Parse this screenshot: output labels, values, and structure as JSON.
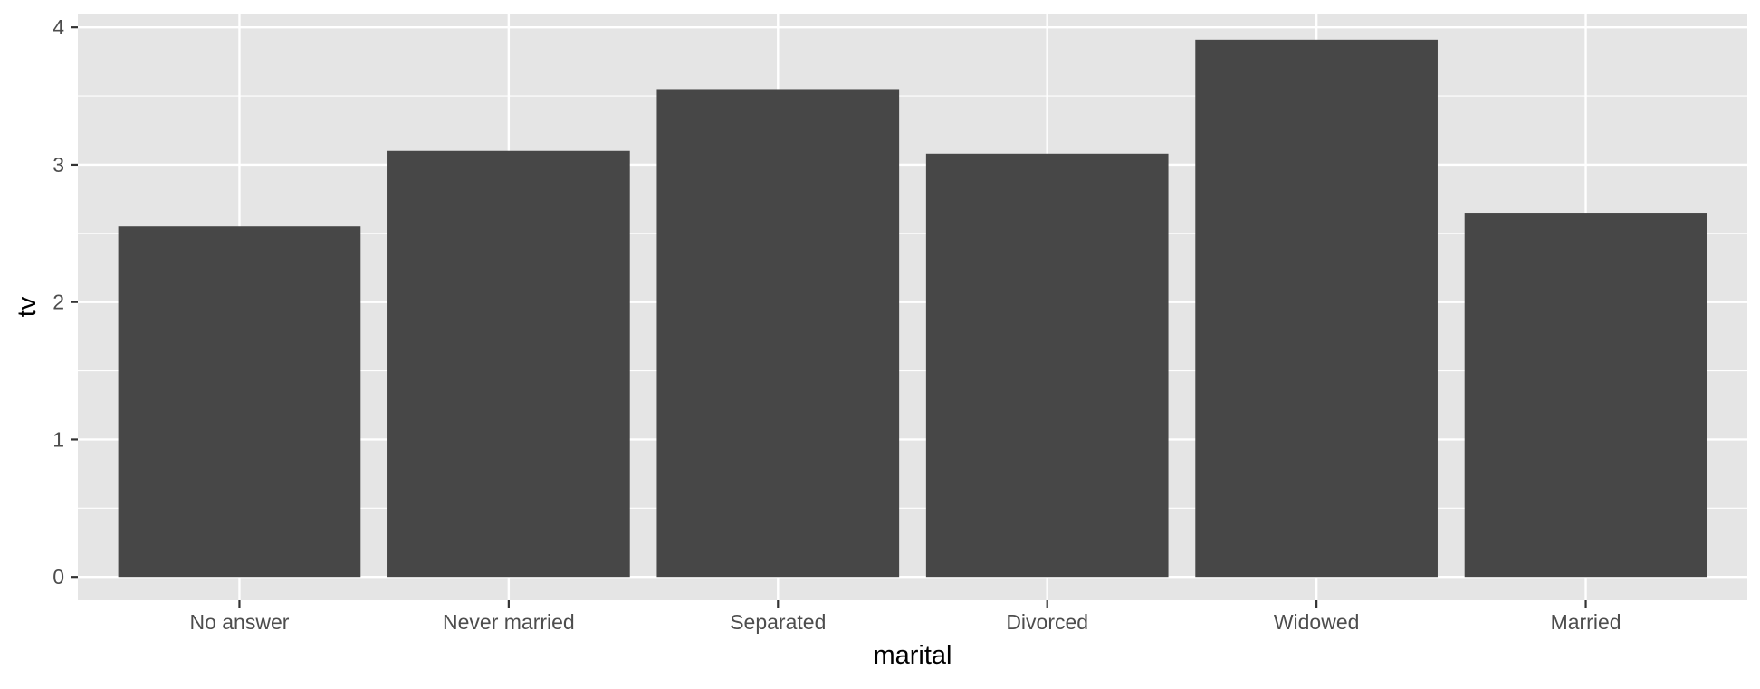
{
  "chart_data": {
    "type": "bar",
    "categories": [
      "No answer",
      "Never married",
      "Separated",
      "Divorced",
      "Widowed",
      "Married"
    ],
    "values": [
      2.55,
      3.1,
      3.55,
      3.08,
      3.91,
      2.65
    ],
    "xlabel": "marital",
    "ylabel": "tv",
    "ylim": [
      -0.17,
      4.1
    ],
    "yticks": [
      0,
      1,
      2,
      3,
      4
    ],
    "grid": true,
    "colors": {
      "panel": "#e5e5e5",
      "grid": "#ffffff",
      "bar": "#474747",
      "tick_label": "#4d4d4d",
      "tick_mark": "#333333",
      "axis_title": "#000000"
    }
  }
}
